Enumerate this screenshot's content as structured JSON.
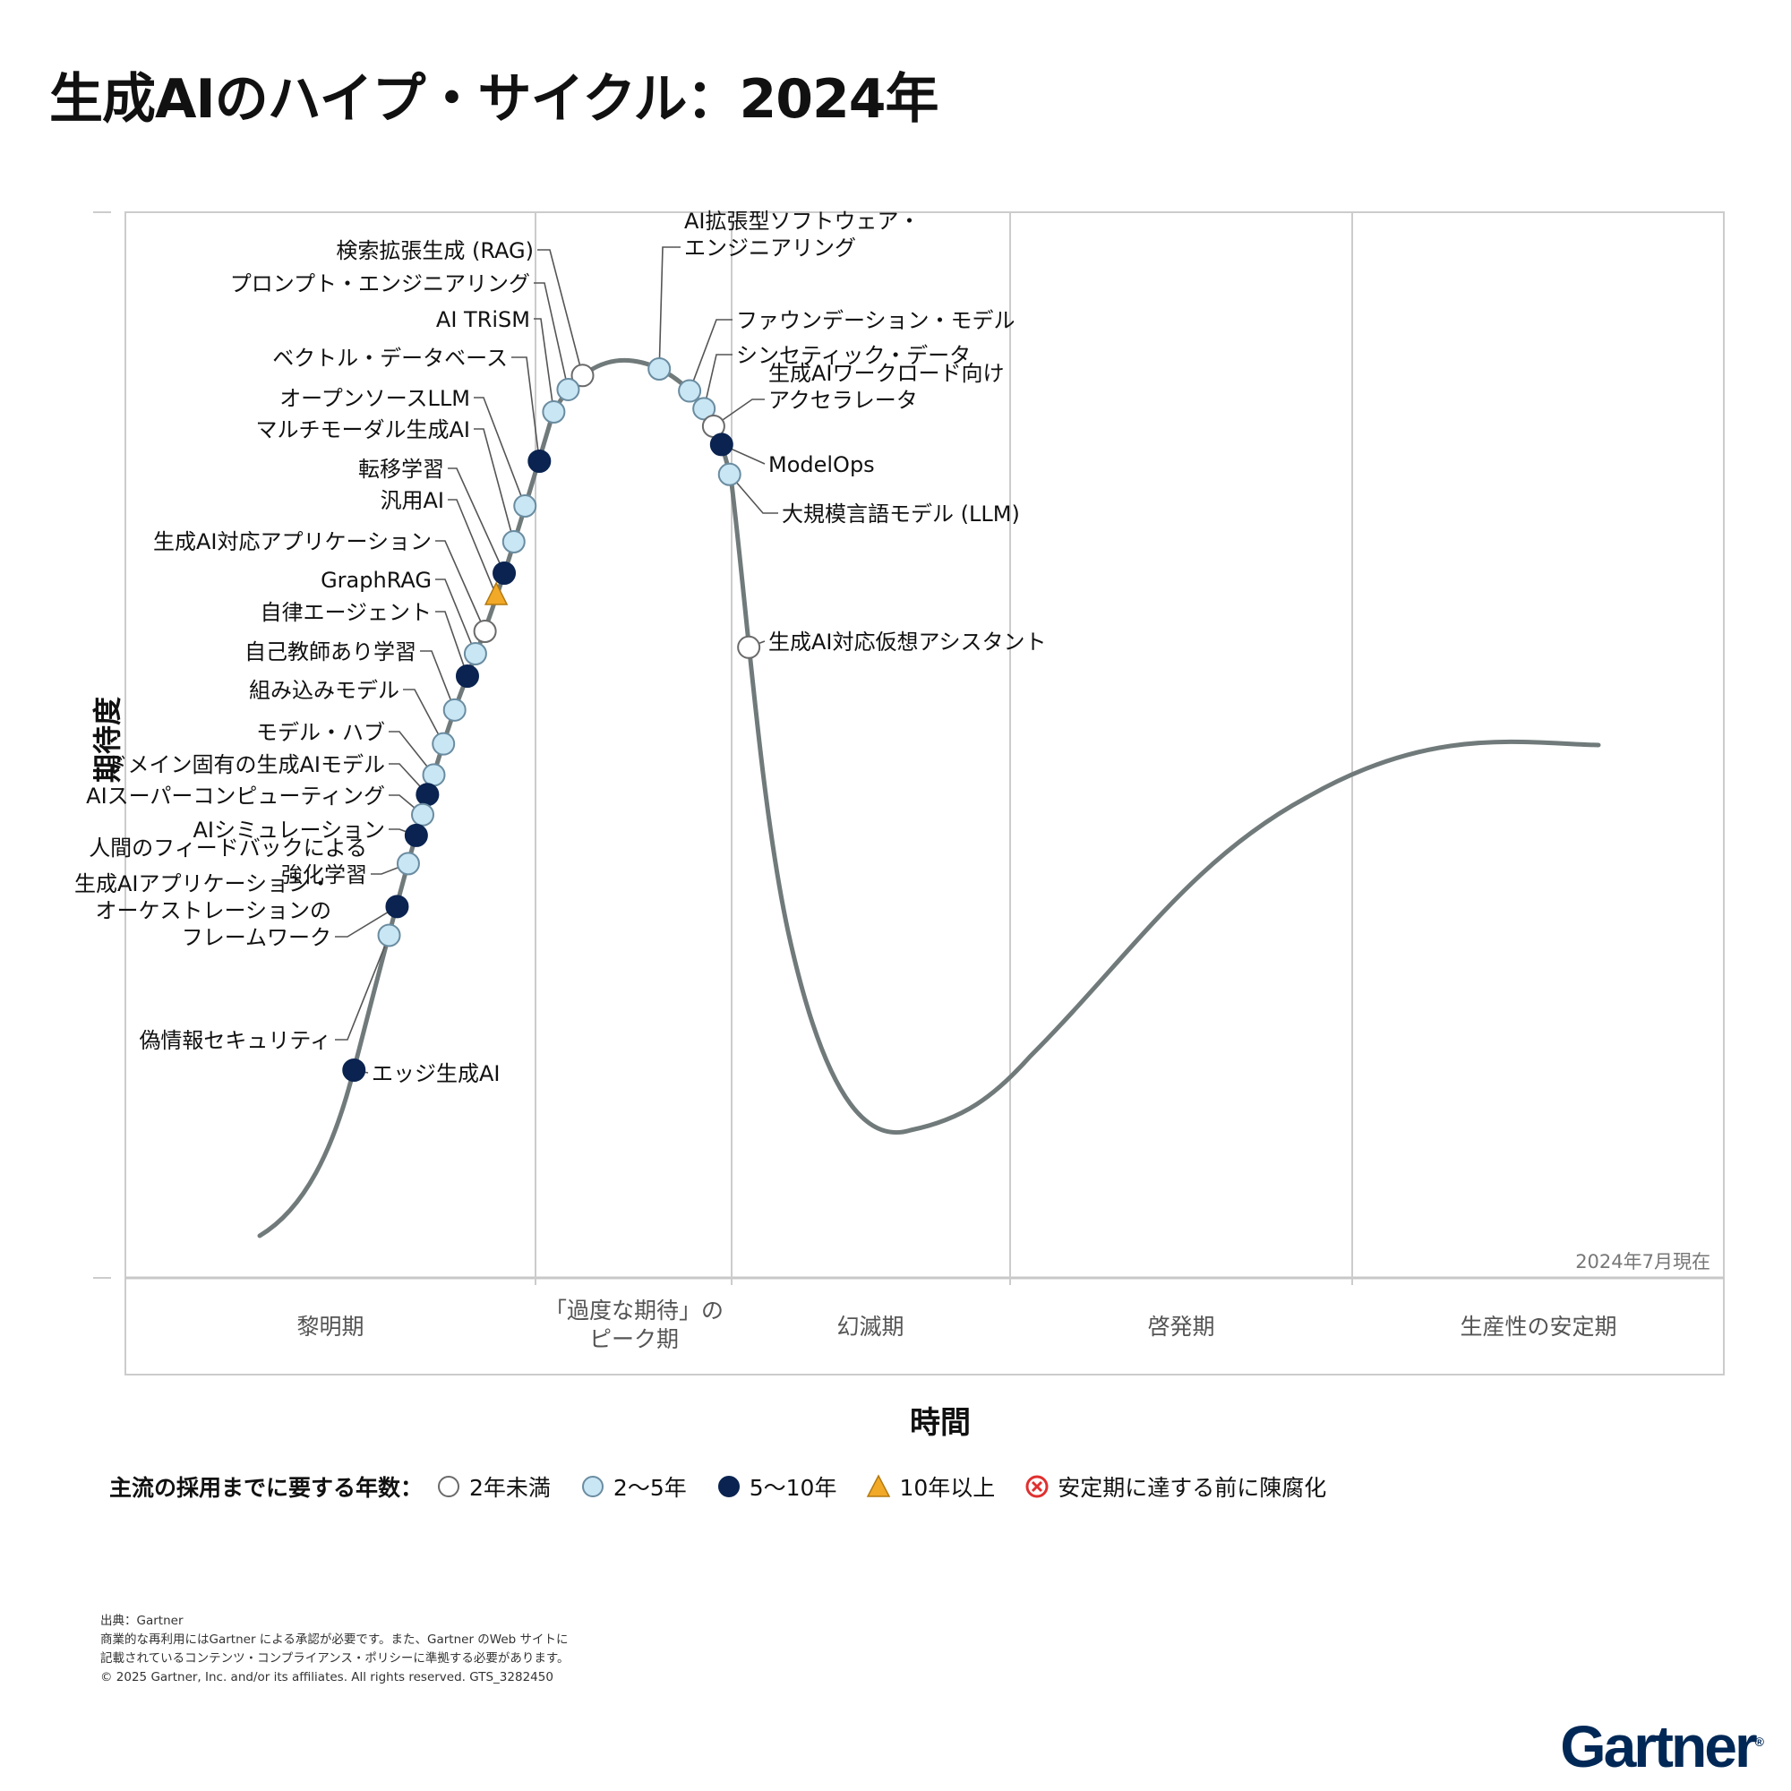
{
  "title": "生成AIのハイプ・サイクル：2024年",
  "chart_data": {
    "type": "line",
    "title": "生成AIのハイプ・サイクル：2024年",
    "ylabel": "期待度",
    "xlabel": "時間",
    "as_of": "2024年7月現在",
    "phases": [
      "黎明期",
      "「過度な期待」の\nピーク期",
      "幻滅期",
      "啓発期",
      "生産性の安定期"
    ],
    "points": [
      {
        "label": "検索拡張生成 (RAG)",
        "status": "lt2",
        "curve_x": 0.286,
        "phase": "「過度な期待」のピーク期"
      },
      {
        "label": "プロンプト・エンジニアリング",
        "status": "2to5",
        "curve_x": 0.277,
        "phase": "「過度な期待」のピーク期"
      },
      {
        "label": "AI TRiSM",
        "status": "2to5",
        "curve_x": 0.268,
        "phase": "「過度な期待」のピーク期"
      },
      {
        "label": "ベクトル・データベース",
        "status": "5to10",
        "curve_x": 0.259,
        "phase": "「過度な期待」のピーク期"
      },
      {
        "label": "オープンソースLLM",
        "status": "2to5",
        "curve_x": 0.25,
        "phase": "黎明期"
      },
      {
        "label": "マルチモーダル生成AI",
        "status": "2to5",
        "curve_x": 0.243,
        "phase": "黎明期"
      },
      {
        "label": "転移学習",
        "status": "5to10",
        "curve_x": 0.237,
        "phase": "黎明期"
      },
      {
        "label": "汎用AI",
        "status": "gt10",
        "curve_x": 0.232,
        "phase": "黎明期"
      },
      {
        "label": "生成AI対応アプリケーション",
        "status": "lt2",
        "curve_x": 0.225,
        "phase": "黎明期"
      },
      {
        "label": "GraphRAG",
        "status": "2to5",
        "curve_x": 0.219,
        "phase": "黎明期"
      },
      {
        "label": "自律エージェント",
        "status": "5to10",
        "curve_x": 0.214,
        "phase": "黎明期"
      },
      {
        "label": "自己教師あり学習",
        "status": "2to5",
        "curve_x": 0.206,
        "phase": "黎明期"
      },
      {
        "label": "組み込みモデル",
        "status": "2to5",
        "curve_x": 0.199,
        "phase": "黎明期"
      },
      {
        "label": "モデル・ハブ",
        "status": "2to5",
        "curve_x": 0.193,
        "phase": "黎明期"
      },
      {
        "label": "ドメイン固有の生成AIモデル",
        "status": "5to10",
        "curve_x": 0.189,
        "phase": "黎明期"
      },
      {
        "label": "AIスーパーコンピューティング",
        "status": "2to5",
        "curve_x": 0.186,
        "phase": "黎明期"
      },
      {
        "label": "AIシミュレーション",
        "status": "5to10",
        "curve_x": 0.182,
        "phase": "黎明期"
      },
      {
        "label": "人間のフィードバックによる\n強化学習",
        "status": "2to5",
        "curve_x": 0.177,
        "phase": "黎明期"
      },
      {
        "label": "生成AIアプリケーション・\nオーケストレーションの\nフレームワーク",
        "status": "5to10",
        "curve_x": 0.17,
        "phase": "黎明期"
      },
      {
        "label": "偽情報セキュリティ",
        "status": "2to5",
        "curve_x": 0.165,
        "phase": "黎明期"
      },
      {
        "label": "エッジ生成AI",
        "status": "5to10",
        "curve_x": 0.143,
        "phase": "黎明期"
      },
      {
        "label": "AI拡張型ソフトウェア・\nエンジニアリング",
        "status": "2to5",
        "curve_x": 0.334,
        "phase": "「過度な期待」のピーク期"
      },
      {
        "label": "ファウンデーション・モデル",
        "status": "2to5",
        "curve_x": 0.353,
        "phase": "「過度な期待」のピーク期"
      },
      {
        "label": "シンセティック・データ",
        "status": "2to5",
        "curve_x": 0.362,
        "phase": "「過度な期待」のピーク期"
      },
      {
        "label": "生成AIワークロード向け\nアクセラレータ",
        "status": "lt2",
        "curve_x": 0.368,
        "phase": "「過度な期待」のピーク期"
      },
      {
        "label": "ModelOps",
        "status": "5to10",
        "curve_x": 0.373,
        "phase": "「過度な期待」のピーク期"
      },
      {
        "label": "大規模言語モデル (LLM)",
        "status": "2to5",
        "curve_x": 0.378,
        "phase": "「過度な期待」のピーク期"
      },
      {
        "label": "生成AI対応仮想アシスタント",
        "status": "lt2",
        "curve_x": 0.39,
        "phase": "幻滅期"
      }
    ]
  },
  "legend": {
    "title": "主流の採用までに要する年数：",
    "items": [
      {
        "key": "lt2",
        "label": "2年未満",
        "fill": "#ffffff",
        "stroke": "#6a6a6a",
        "shape": "circle"
      },
      {
        "key": "2to5",
        "label": "2～5年",
        "fill": "#c9e6f5",
        "stroke": "#6a8ca0",
        "shape": "circle"
      },
      {
        "key": "5to10",
        "label": "5～10年",
        "fill": "#0a2350",
        "stroke": "#0a2350",
        "shape": "circle"
      },
      {
        "key": "gt10",
        "label": "10年以上",
        "fill": "#f2a928",
        "stroke": "#b27a10",
        "shape": "triangle"
      },
      {
        "key": "obsolete",
        "label": "安定期に達する前に陳腐化",
        "fill": "#ffffff",
        "stroke": "#e03030",
        "shape": "x-circle"
      }
    ]
  },
  "footer": {
    "lines": [
      "出典：Gartner",
      "商業的な再利用にはGartner による承認が必要です。また、Gartner のWeb サイトに",
      "記載されているコンテンツ・コンプライアンス・ポリシーに準拠する必要があります。",
      "© 2025 Gartner, Inc. and/or its affiliates. All rights reserved. GTS_3282450"
    ]
  },
  "logo": {
    "text": "Gartner",
    "mark": "®"
  },
  "colors": {
    "curve": "#717a7a",
    "axis": "#cccccc",
    "phase_text": "#555555",
    "leader": "#555555"
  }
}
